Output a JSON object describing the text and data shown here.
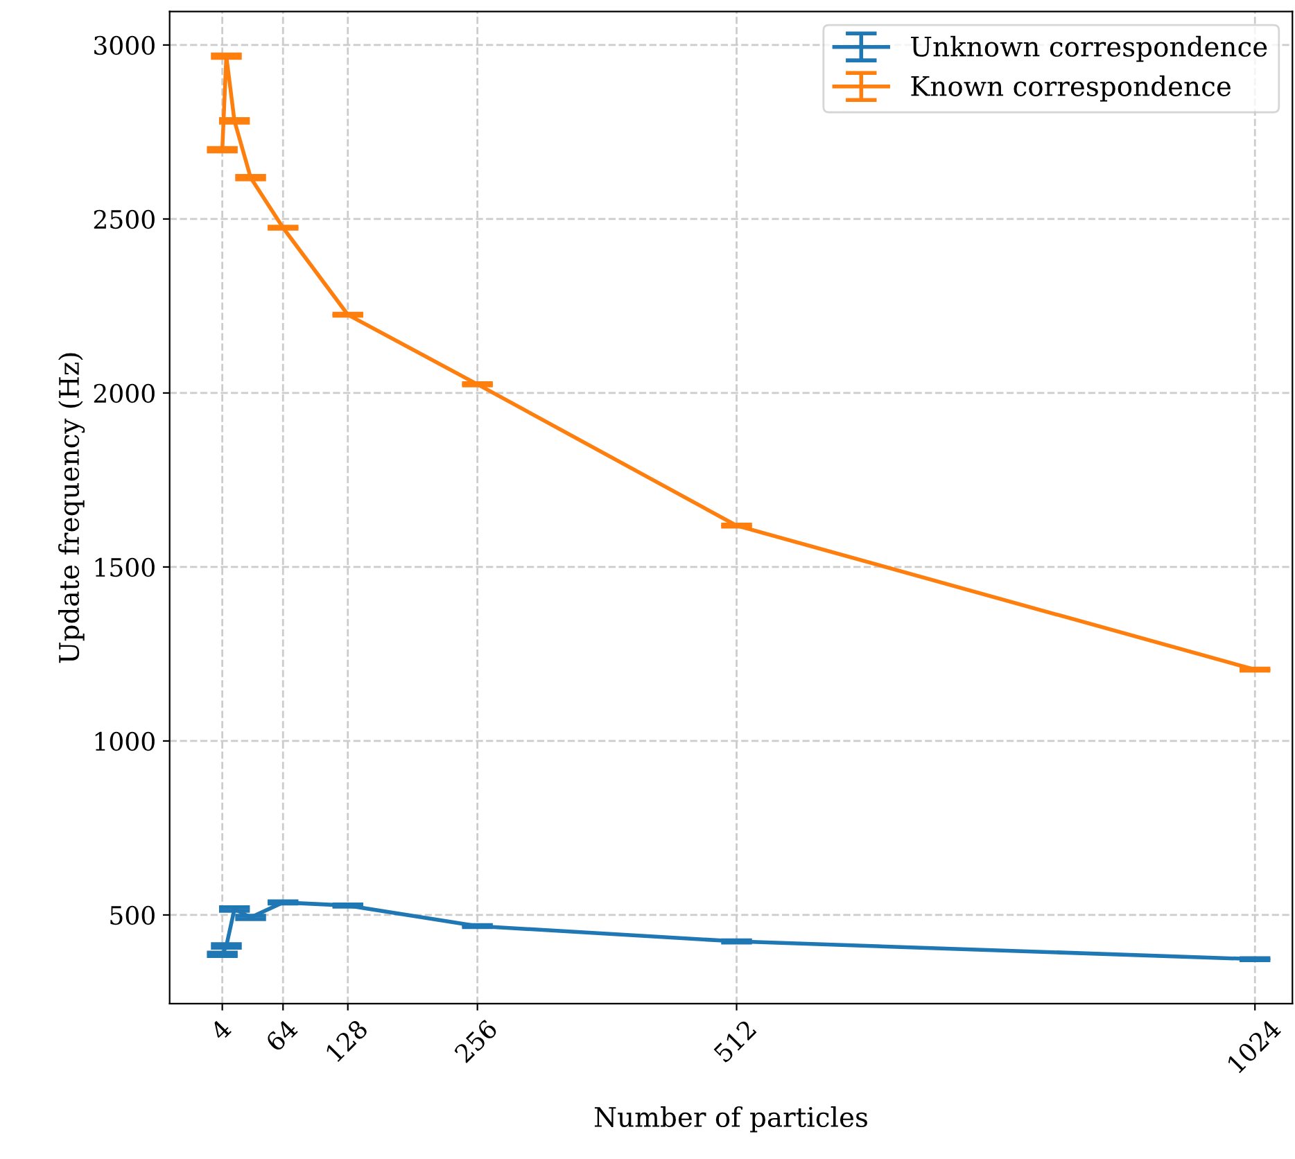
{
  "chart_data": {
    "type": "line",
    "xlabel": "Number of particles",
    "ylabel": "Update frequency (Hz)",
    "x": [
      4,
      8,
      16,
      32,
      64,
      128,
      256,
      512,
      1024
    ],
    "series": [
      {
        "name": "Unknown correspondence",
        "color": "#1f77b4",
        "values": [
          387,
          411,
          517,
          493,
          536,
          527,
          468,
          424,
          373
        ],
        "errors": [
          5,
          5,
          5,
          5,
          3,
          3,
          3,
          3,
          3
        ]
      },
      {
        "name": "Known correspondence",
        "color": "#ff7f0e",
        "values": [
          2699,
          2968,
          2782,
          2619,
          2475,
          2225,
          2025,
          1619,
          1205
        ],
        "errors": [
          5,
          5,
          5,
          5,
          3,
          3,
          3,
          3,
          3
        ]
      }
    ],
    "xlim": [
      -48,
      1061
    ],
    "ylim": [
      245,
      3096
    ],
    "xticks": [
      4,
      64,
      128,
      256,
      512,
      1024
    ],
    "yticks": [
      500,
      1000,
      1500,
      2000,
      2500,
      3000
    ],
    "grid": true,
    "legend": "top right"
  }
}
